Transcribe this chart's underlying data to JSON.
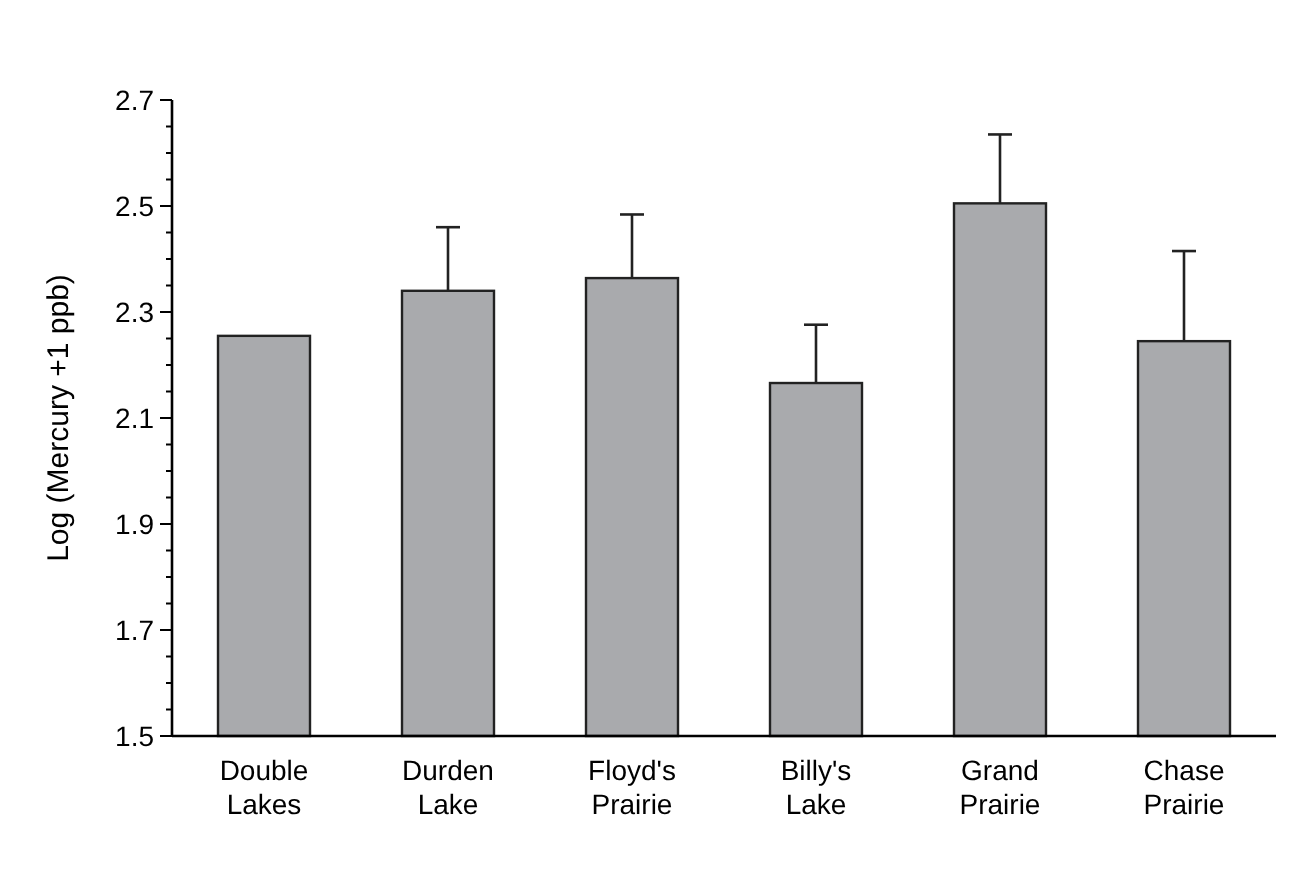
{
  "chart_data": {
    "type": "bar",
    "ylabel": "Log (Mercury +1 ppb)",
    "categories": [
      "Double Lakes",
      "Durden Lake",
      "Floyd's Prairie",
      "Billy's Lake",
      "Grand Prairie",
      "Chase Prairie"
    ],
    "values": [
      2.255,
      2.34,
      2.364,
      2.166,
      2.505,
      2.245
    ],
    "errors": [
      null,
      [
        2.34,
        2.46
      ],
      [
        2.364,
        2.484
      ],
      [
        2.166,
        2.276
      ],
      [
        2.505,
        2.635
      ],
      [
        2.245,
        2.415
      ]
    ],
    "color": "#a9aaad",
    "ylim": [
      1.5,
      2.7
    ],
    "yticks": [
      1.5,
      {
        "value": 1.55,
        "label": null
      },
      {
        "value": 1.6,
        "label": null
      },
      {
        "value": 1.65,
        "label": null
      },
      1.7,
      {
        "value": 1.75,
        "label": null
      },
      {
        "value": 1.8,
        "label": null
      },
      {
        "value": 1.85,
        "label": null
      },
      1.9,
      {
        "value": 1.95,
        "label": null
      },
      {
        "value": 2.0,
        "label": null
      },
      {
        "value": 2.05,
        "label": null
      },
      2.1,
      {
        "value": 2.15,
        "label": null
      },
      {
        "value": 2.2,
        "label": null
      },
      {
        "value": 2.25,
        "label": null
      },
      2.3,
      {
        "value": 2.35,
        "label": null
      },
      {
        "value": 2.4,
        "label": null
      },
      {
        "value": 2.45,
        "label": null
      },
      2.5,
      {
        "value": 2.55,
        "label": null
      },
      {
        "value": 2.6,
        "label": null
      },
      {
        "value": 2.65,
        "label": null
      },
      2.7
    ]
  }
}
